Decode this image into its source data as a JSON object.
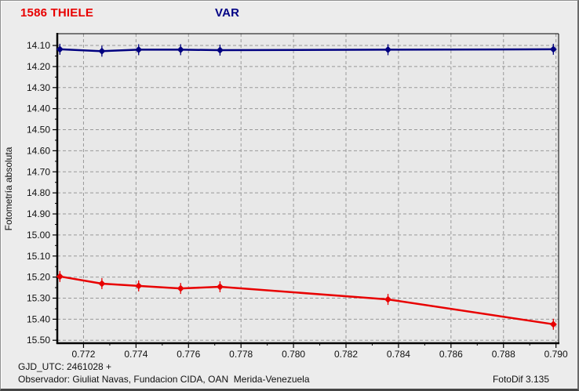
{
  "window": {
    "bg": "#ececec",
    "plot_bg": "#e8e8e8",
    "grid_color": "#999999",
    "axis_color": "#000000",
    "text_color": "#111111"
  },
  "header": {
    "object_label": "1586 THIELE",
    "object_color": "#e80000",
    "comparison_label": "VAR",
    "comparison_color": "#000085"
  },
  "footer": {
    "gjd_line": "GJD_UTC: 2461028 +",
    "observer_line": "Observador: Giuliat Navas, Fundacion CIDA, OAN  Merida-Venezuela",
    "software_version": "FotoDif 3.135"
  },
  "chart_data": {
    "type": "line",
    "title": "",
    "xlabel": "",
    "ylabel": "Fotometría absoluta",
    "y_axis_inverted": true,
    "grid": "dashed",
    "legend": "none",
    "xlim": [
      0.771,
      0.7901
    ],
    "ylim": [
      14.044,
      15.514
    ],
    "x_ticks": [
      0.772,
      0.774,
      0.776,
      0.778,
      0.78,
      0.782,
      0.784,
      0.786,
      0.788,
      0.79
    ],
    "x_tick_labels": [
      "0.772",
      "0.774",
      "0.776",
      "0.778",
      "0.780",
      "0.782",
      "0.784",
      "0.786",
      "0.788",
      "0.790"
    ],
    "y_ticks": [
      14.1,
      14.2,
      14.3,
      14.4,
      14.5,
      14.6,
      14.7,
      14.8,
      14.9,
      15.0,
      15.1,
      15.2,
      15.3,
      15.4,
      15.5
    ],
    "y_tick_labels": [
      "14.10",
      "14.20",
      "14.30",
      "14.40",
      "14.50",
      "14.60",
      "14.70",
      "14.80",
      "14.90",
      "15.00",
      "15.10",
      "15.20",
      "15.30",
      "15.40",
      "15.50"
    ],
    "x": [
      0.7711,
      0.7727,
      0.7741,
      0.7757,
      0.7772,
      0.7836,
      0.7899
    ],
    "series": [
      {
        "name": "1586 THIELE",
        "color": "#e80000",
        "values": [
          15.197,
          15.231,
          15.242,
          15.254,
          15.246,
          15.306,
          15.424
        ]
      },
      {
        "name": "VAR",
        "color": "#000080",
        "values": [
          14.118,
          14.127,
          14.12,
          14.12,
          14.122,
          14.12,
          14.118
        ]
      }
    ]
  }
}
